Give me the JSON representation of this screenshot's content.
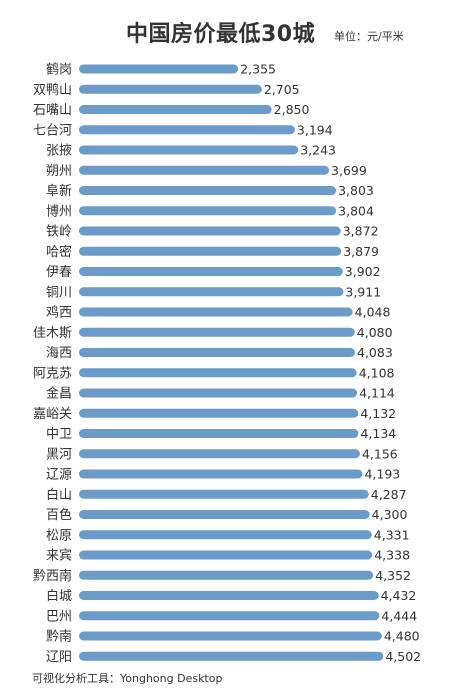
{
  "chart_data": {
    "type": "bar",
    "orientation": "horizontal",
    "title": "中国房价最低30城",
    "unit_label": "单位：元/平米",
    "categories": [
      "鹤岗",
      "双鸭山",
      "石嘴山",
      "七台河",
      "张掖",
      "朔州",
      "阜新",
      "博州",
      "铁岭",
      "哈密",
      "伊春",
      "铜川",
      "鸡西",
      "佳木斯",
      "海西",
      "阿克苏",
      "金昌",
      "嘉峪关",
      "中卫",
      "黑河",
      "辽源",
      "白山",
      "百色",
      "松原",
      "来宾",
      "黔西南",
      "白城",
      "巴州",
      "黔南",
      "辽阳"
    ],
    "values": [
      2355,
      2705,
      2850,
      3194,
      3243,
      3699,
      3803,
      3804,
      3872,
      3879,
      3902,
      3911,
      4048,
      4080,
      4083,
      4108,
      4114,
      4132,
      4134,
      4156,
      4193,
      4287,
      4300,
      4331,
      4338,
      4352,
      4432,
      4444,
      4480,
      4502
    ],
    "value_labels": [
      "2,355",
      "2,705",
      "2,850",
      "3,194",
      "3,243",
      "3,699",
      "3,803",
      "3,804",
      "3,872",
      "3,879",
      "3,902",
      "3,911",
      "4,048",
      "4,080",
      "4,083",
      "4,108",
      "4,114",
      "4,132",
      "4,134",
      "4,156",
      "4,193",
      "4,287",
      "4,300",
      "4,331",
      "4,338",
      "4,352",
      "4,432",
      "4,444",
      "4,480",
      "4,502"
    ],
    "bar_color": "#6b9bc9",
    "grid": false,
    "legend": "none"
  },
  "footer": "可视化分析工具：Yonghong Desktop"
}
